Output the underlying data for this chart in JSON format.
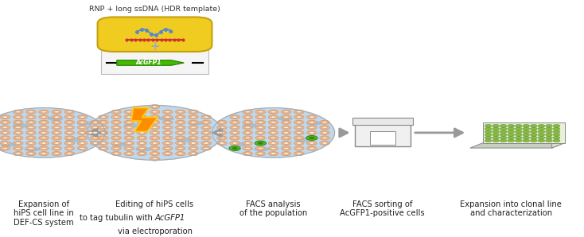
{
  "background_color": "#ffffff",
  "rnp_label": "RNP + long ssDNA (HDR template)",
  "step_labels_1": "Expansion of\nhiPS cell line in\nDEF-CS system",
  "step_labels_2a": "Editing of hiPS cells",
  "step_labels_2b": "to tag tubulin with ",
  "step_labels_2c": "AcGFP1",
  "step_labels_2d": "via electroporation",
  "step_labels_3": "FACS analysis\nof the population",
  "step_labels_4": "FACS sorting of\nAcGFP1-positive cells",
  "step_labels_5": "Expansion into clonal line\nand characterization",
  "fig_width": 7.34,
  "fig_height": 2.98,
  "arrow_color": "#999999",
  "cell_fill": "#f0b888",
  "cell_edge": "#d4956a",
  "cell_inner": "#faf0e0",
  "cell_inner_edge": "#c8855a",
  "blue_spot": "#9bbdd4",
  "circle_bg": "#c0d8ec",
  "gfp_outer": "#55bb22",
  "gfp_inner": "#2d8810",
  "lightning_fill": "#ff8c00",
  "lightning_edge": "#ffcc00",
  "blob_fill": "#f0cc20",
  "blob_edge": "#c4a010",
  "dna_blue": "#5588cc",
  "ssdna_red": "#cc3333",
  "acgfp_arrow_fill": "#44bb00",
  "acgfp_arrow_edge": "#227700",
  "box_fill": "#f5f5f5",
  "box_edge": "#bbbbbb",
  "plate_top": "#e8f0d8",
  "plate_well": "#88bb44",
  "plate_well_edge": "#558822",
  "facs_fill": "#f0f0f0",
  "facs_edge": "#888888",
  "label_color": "#222222",
  "label_fs": 7.2
}
